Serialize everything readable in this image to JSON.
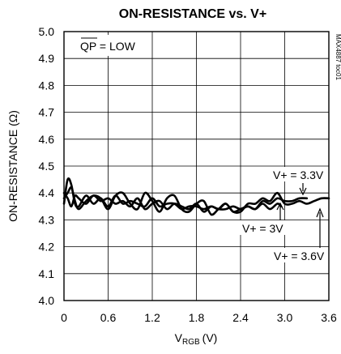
{
  "chart_data": {
    "type": "line",
    "title": "ON-RESISTANCE vs. V+",
    "xlabel": "V",
    "xlabel_sub": "RGB",
    "xlabel_unit": "(V)",
    "ylabel": "ON-RESISTANCE (Ω)",
    "xlim": [
      0,
      3.6
    ],
    "ylim": [
      4.0,
      5.0
    ],
    "x_ticks": [
      "0",
      "0.6",
      "1.2",
      "1.8",
      "2.4",
      "3.0",
      "3.6"
    ],
    "y_ticks": [
      "4.0",
      "4.1",
      "4.2",
      "4.3",
      "4.4",
      "4.5",
      "4.6",
      "4.7",
      "4.8",
      "4.9",
      "5.0"
    ],
    "grid": true,
    "condition_label": {
      "overbar": "QP",
      "text": " = LOW"
    },
    "side_code": "MAX4887 toc01",
    "series": [
      {
        "name": "V+ = 3V",
        "x": [
          0,
          0.05,
          0.1,
          0.15,
          0.2,
          0.3,
          0.4,
          0.5,
          0.6,
          0.7,
          0.8,
          0.9,
          1.0,
          1.1,
          1.2,
          1.3,
          1.4,
          1.5,
          1.6,
          1.7,
          1.8,
          1.9,
          2.0,
          2.1,
          2.2,
          2.3,
          2.4,
          2.5,
          2.6,
          2.7,
          2.8,
          2.9,
          2.95
        ],
        "y": [
          4.36,
          4.45,
          4.43,
          4.36,
          4.35,
          4.39,
          4.36,
          4.38,
          4.35,
          4.39,
          4.36,
          4.37,
          4.36,
          4.35,
          4.38,
          4.35,
          4.36,
          4.36,
          4.34,
          4.35,
          4.35,
          4.34,
          4.35,
          4.34,
          4.34,
          4.35,
          4.34,
          4.35,
          4.34,
          4.36,
          4.34,
          4.36,
          4.35
        ]
      },
      {
        "name": "V+ = 3.3V",
        "x": [
          0,
          0.05,
          0.1,
          0.15,
          0.2,
          0.3,
          0.4,
          0.5,
          0.6,
          0.7,
          0.8,
          0.9,
          1.0,
          1.1,
          1.2,
          1.3,
          1.4,
          1.5,
          1.6,
          1.7,
          1.8,
          1.9,
          2.0,
          2.1,
          2.2,
          2.3,
          2.4,
          2.5,
          2.6,
          2.7,
          2.8,
          2.9,
          3.0,
          3.1,
          3.2,
          3.3
        ],
        "y": [
          4.4,
          4.38,
          4.35,
          4.39,
          4.38,
          4.36,
          4.39,
          4.37,
          4.38,
          4.36,
          4.37,
          4.35,
          4.38,
          4.34,
          4.36,
          4.37,
          4.34,
          4.36,
          4.35,
          4.34,
          4.36,
          4.33,
          4.35,
          4.34,
          4.36,
          4.33,
          4.34,
          4.35,
          4.34,
          4.37,
          4.36,
          4.38,
          4.37,
          4.37,
          4.38,
          4.38
        ]
      },
      {
        "name": "V+ = 3.6V",
        "x": [
          0,
          0.05,
          0.1,
          0.15,
          0.2,
          0.3,
          0.4,
          0.5,
          0.6,
          0.7,
          0.8,
          0.9,
          1.0,
          1.1,
          1.2,
          1.3,
          1.4,
          1.5,
          1.6,
          1.7,
          1.8,
          1.9,
          2.0,
          2.1,
          2.2,
          2.3,
          2.4,
          2.5,
          2.6,
          2.7,
          2.8,
          2.9,
          3.0,
          3.1,
          3.2,
          3.3,
          3.4,
          3.5,
          3.6
        ],
        "y": [
          4.38,
          4.4,
          4.42,
          4.37,
          4.34,
          4.37,
          4.39,
          4.38,
          4.34,
          4.39,
          4.4,
          4.36,
          4.34,
          4.4,
          4.37,
          4.33,
          4.38,
          4.39,
          4.34,
          4.33,
          4.36,
          4.37,
          4.32,
          4.34,
          4.36,
          4.33,
          4.33,
          4.36,
          4.36,
          4.38,
          4.37,
          4.4,
          4.36,
          4.36,
          4.37,
          4.36,
          4.37,
          4.38,
          4.38
        ]
      }
    ],
    "annotations": [
      {
        "text": "V+ = 3.3V",
        "series": 1
      },
      {
        "text": "V+ = 3V",
        "series": 0
      },
      {
        "text": "V+ = 3.6V",
        "series": 2
      }
    ]
  }
}
